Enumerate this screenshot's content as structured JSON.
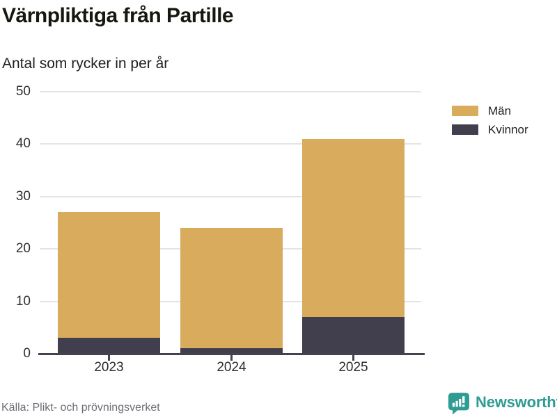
{
  "header": {
    "title": "Värnpliktiga från Partille",
    "subtitle": "Antal som rycker in per år"
  },
  "chart_data": {
    "type": "bar",
    "stacked": true,
    "title": "Värnpliktiga från Partille",
    "subtitle": "Antal som rycker in per år",
    "categories": [
      "2023",
      "2024",
      "2025"
    ],
    "series": [
      {
        "name": "Män",
        "color": "#d9ab5d",
        "values": [
          24,
          23,
          34
        ]
      },
      {
        "name": "Kvinnor",
        "color": "#413e4e",
        "values": [
          3,
          1,
          7
        ]
      }
    ],
    "stack_totals": [
      27,
      24,
      41
    ],
    "xlabel": "",
    "ylabel": "",
    "yticks": [
      0,
      10,
      20,
      30,
      40,
      50
    ],
    "ylim": [
      0,
      50
    ],
    "grid": true,
    "legend_position": "right-top",
    "axis_color": "#454250",
    "gridline_color": "#e4e4e4"
  },
  "footer": {
    "source": "Källa: Plikt- och prövningsverket",
    "brand": "Newsworthy",
    "brand_color": "#2e9c92"
  }
}
